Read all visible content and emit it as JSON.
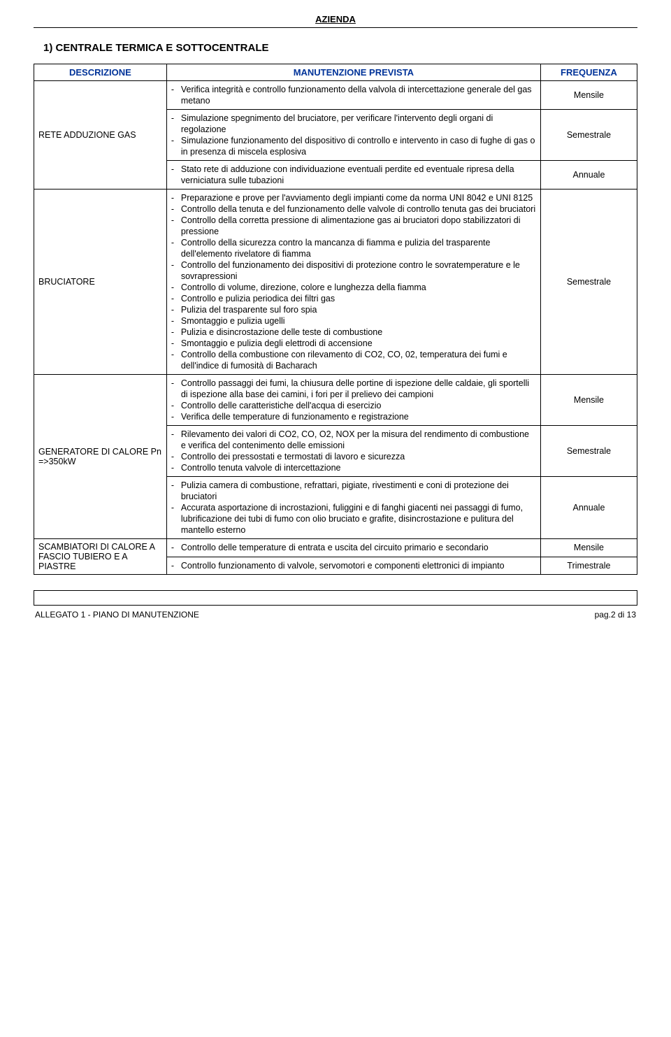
{
  "header": {
    "company": "AZIENDA"
  },
  "section_title": "1) CENTRALE TERMICA E SOTTOCENTRALE",
  "table": {
    "headers": {
      "desc": "DESCRIZIONE",
      "maint": "MANUTENZIONE PREVISTA",
      "freq": "FREQUENZA"
    },
    "header_color": "#003399",
    "border_color": "#000000",
    "groups": [
      {
        "desc": "RETE ADDUZIONE GAS",
        "blocks": [
          {
            "freq": "Mensile",
            "items": [
              "Verifica integrità e controllo funzionamento della valvola di intercettazione generale del gas metano"
            ]
          },
          {
            "freq": "Semestrale",
            "items": [
              "Simulazione spegnimento del bruciatore, per verificare l'intervento degli organi di regolazione",
              "Simulazione funzionamento del dispositivo di controllo e intervento in caso di fughe di gas o in presenza di miscela esplosiva"
            ]
          },
          {
            "freq": "Annuale",
            "items": [
              "Stato rete di adduzione con individuazione eventuali perdite ed eventuale ripresa della verniciatura sulle tubazioni"
            ]
          }
        ]
      },
      {
        "desc": "BRUCIATORE",
        "blocks": [
          {
            "freq": "Semestrale",
            "items": [
              "Preparazione e prove per l'avviamento degli impianti come da norma UNI 8042 e UNI 8125",
              "Controllo della tenuta e del funzionamento delle valvole di controllo tenuta gas dei bruciatori",
              "Controllo della corretta pressione di alimentazione gas ai bruciatori dopo stabilizzatori di pressione",
              "Controllo della sicurezza contro la mancanza di fiamma e pulizia del trasparente dell'elemento rivelatore di fiamma",
              "Controllo del funzionamento dei dispositivi di protezione contro le sovratemperature e le sovrapressioni",
              "Controllo di volume, direzione, colore e lunghezza della fiamma",
              "Controllo e pulizia periodica dei filtri gas",
              "Pulizia del trasparente sul foro spia",
              "Smontaggio e pulizia ugelli",
              "Pulizia e disincrostazione delle teste di combustione",
              "Smontaggio e pulizia degli elettrodi di accensione",
              "Controllo della combustione con rilevamento di CO2, CO, 02, temperatura dei fumi e dell'indice di fumosità di Bacharach"
            ]
          }
        ]
      },
      {
        "desc": "GENERATORE DI CALORE Pn =>350kW",
        "blocks": [
          {
            "freq": "Mensile",
            "items": [
              "Controllo passaggi dei fumi, la chiusura delle portine di ispezione delle caldaie, gli sportelli di ispezione alla base dei camini, i fori per il prelievo dei campioni",
              "Controllo delle caratteristiche dell'acqua di esercizio",
              "Verifica delle temperature di funzionamento e registrazione"
            ]
          },
          {
            "freq": "Semestrale",
            "items": [
              "Rilevamento dei valori di CO2, CO, O2, NOX per la misura del rendimento di combustione e verifica del contenimento delle emissioni",
              "Controllo dei pressostati e termostati di lavoro e sicurezza",
              "Controllo tenuta valvole di intercettazione"
            ]
          },
          {
            "freq": "Annuale",
            "items": [
              "Pulizia camera di combustione, refrattari, pigiate, rivestimenti e coni di protezione dei bruciatori",
              "Accurata asportazione di incrostazioni, fuliggini e di fanghi giacenti nei passaggi di fumo, lubrificazione dei tubi di fumo con olio bruciato e grafite, disincrostazione e pulitura del mantello esterno"
            ]
          }
        ]
      },
      {
        "desc": "SCAMBIATORI DI CALORE A FASCIO TUBIERO E A PIASTRE",
        "blocks": [
          {
            "freq": "Mensile",
            "items": [
              "Controllo delle temperature di entrata e uscita del circuito primario e secondario"
            ]
          },
          {
            "freq": "Trimestrale",
            "items": [
              "Controllo funzionamento di valvole, servomotori e componenti elettronici di impianto"
            ]
          }
        ]
      }
    ]
  },
  "footer": {
    "left": "ALLEGATO 1 - PIANO DI MANUTENZIONE",
    "right": "pag.2 di 13"
  }
}
